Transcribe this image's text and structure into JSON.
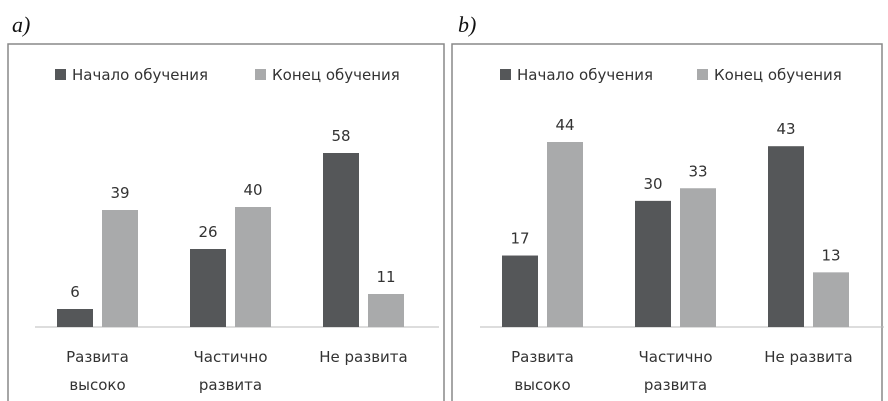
{
  "chart_data": [
    {
      "type": "bar",
      "title": "a)",
      "categories": [
        "Развита\nвысоко",
        "Частично\nразвита",
        "Не развита"
      ],
      "series": [
        {
          "name": "Начало обучения",
          "color": "#555759",
          "values": [
            6,
            26,
            58
          ]
        },
        {
          "name": "Конец обучения",
          "color": "#a9aaab",
          "values": [
            39,
            40,
            11
          ]
        }
      ]
    },
    {
      "type": "bar",
      "title": "b)",
      "categories": [
        "Развита\nвысоко",
        "Частично\nразвита",
        "Не развита"
      ],
      "series": [
        {
          "name": "Начало обучения",
          "color": "#555759",
          "values": [
            17,
            30,
            43
          ]
        },
        {
          "name": "Конец обучения",
          "color": "#a9aaab",
          "values": [
            44,
            33,
            13
          ]
        }
      ]
    }
  ]
}
